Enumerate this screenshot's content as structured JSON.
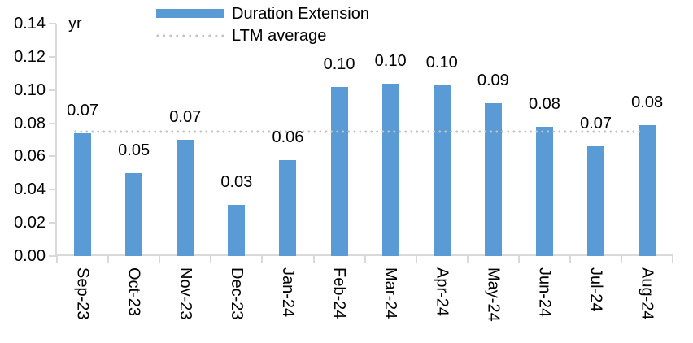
{
  "chart_data": {
    "type": "bar",
    "unit_label": "yr",
    "categories": [
      "Sep-23",
      "Oct-23",
      "Nov-23",
      "Dec-23",
      "Jan-24",
      "Feb-24",
      "Mar-24",
      "Apr-24",
      "May-24",
      "Jun-24",
      "Jul-24",
      "Aug-24"
    ],
    "series": [
      {
        "name": "Duration Extension",
        "values": [
          0.074,
          0.05,
          0.07,
          0.031,
          0.058,
          0.102,
          0.104,
          0.103,
          0.092,
          0.078,
          0.066,
          0.079
        ],
        "data_labels": [
          "0.07",
          "0.05",
          "0.07",
          "0.03",
          "0.06",
          "0.10",
          "0.10",
          "0.10",
          "0.09",
          "0.08",
          "0.07",
          "0.08"
        ]
      }
    ],
    "reference_line": {
      "name": "LTM average",
      "value": 0.075,
      "style": "dotted"
    },
    "ylim": [
      0,
      0.14
    ],
    "ytick_step": 0.02,
    "yticks": [
      "0.00",
      "0.02",
      "0.04",
      "0.06",
      "0.08",
      "0.10",
      "0.12",
      "0.14"
    ],
    "grid": false,
    "legend_position": "top-center",
    "colors": {
      "bar": "#5B9BD5",
      "reference_line": "#C2C2C2",
      "axis": "#D9D9D9",
      "text": "#000000"
    }
  },
  "legend": {
    "items": [
      {
        "label": "Duration Extension",
        "swatch": "bar"
      },
      {
        "label": "LTM average",
        "swatch": "dotted"
      }
    ]
  }
}
